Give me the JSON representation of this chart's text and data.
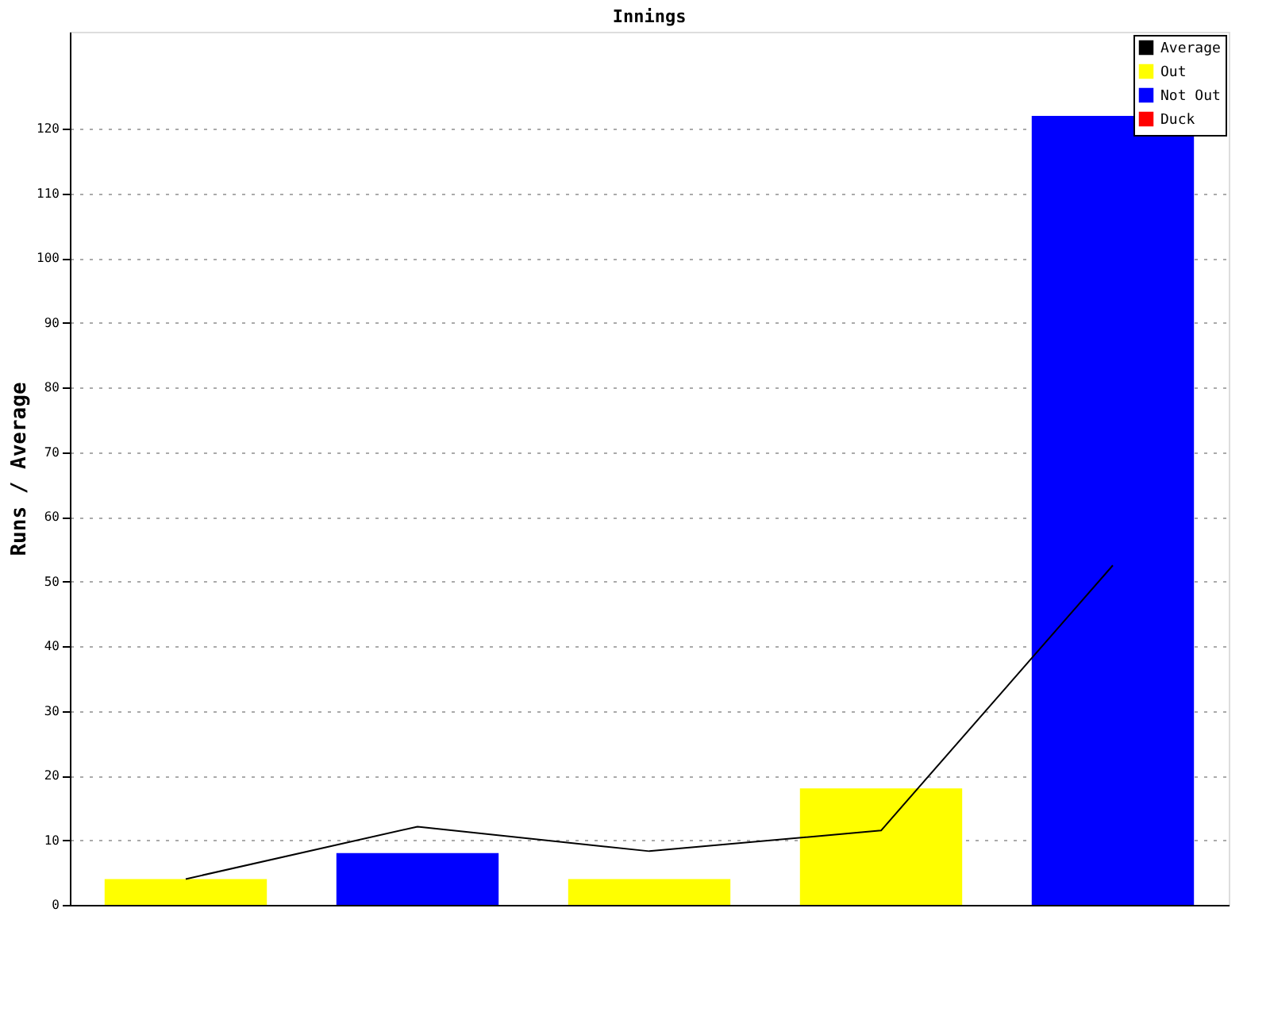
{
  "chart_data": {
    "type": "bar",
    "title": "Innings",
    "ylabel": "Runs / Average",
    "categories": [
      null,
      null,
      null,
      null,
      null
    ],
    "series": [
      {
        "name": "Average",
        "type": "line",
        "color": "#000000",
        "values": [
          4,
          12.1,
          8.3,
          11.5,
          52.5
        ]
      },
      {
        "name": "Out",
        "color": "#ffff00",
        "values": [
          4,
          null,
          4,
          18,
          null
        ]
      },
      {
        "name": "Not Out",
        "color": "#0000ff",
        "values": [
          null,
          8,
          null,
          null,
          122
        ]
      },
      {
        "name": "Duck",
        "color": "#ff0000",
        "values": [
          null,
          null,
          null,
          null,
          null
        ]
      }
    ],
    "ylim": [
      0,
      135
    ],
    "yticks": [
      0,
      10,
      20,
      30,
      40,
      50,
      60,
      70,
      80,
      90,
      100,
      110,
      120
    ],
    "grid": "y",
    "legend": "top right",
    "tick_labels": "y"
  }
}
